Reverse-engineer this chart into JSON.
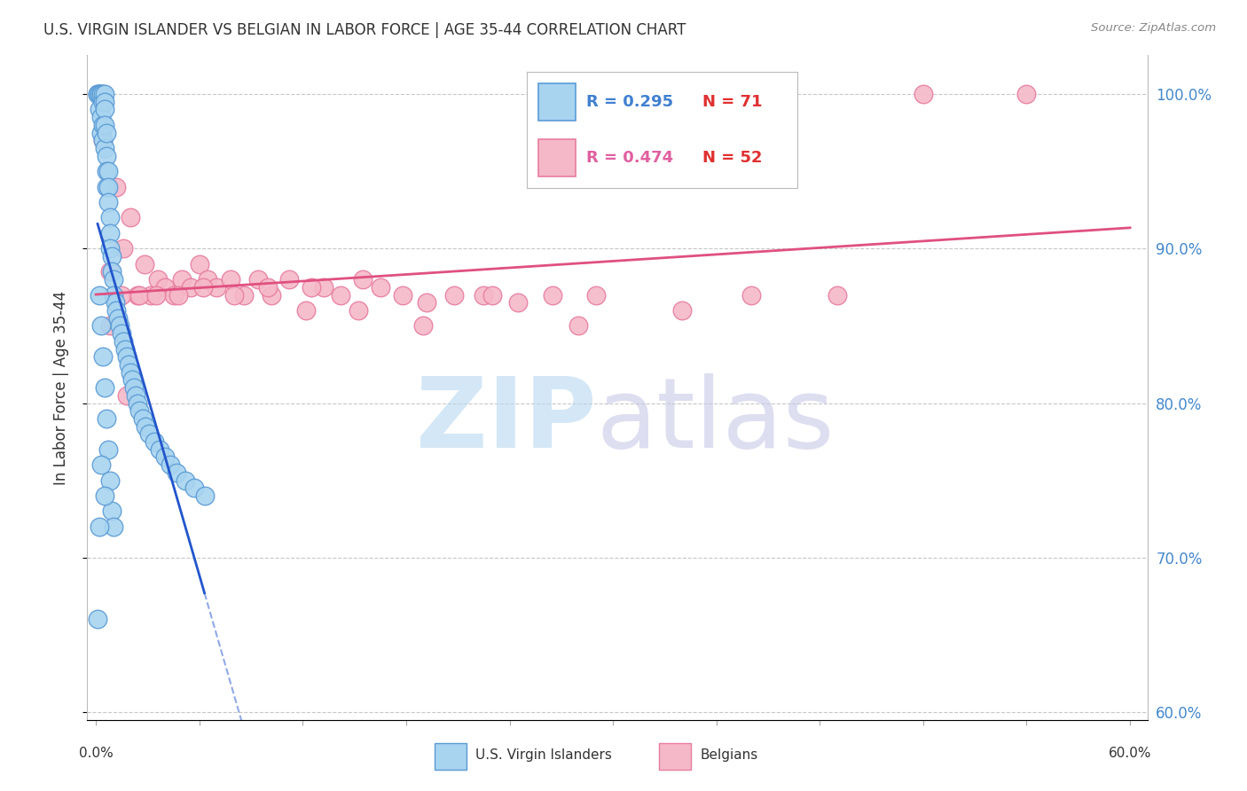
{
  "title": "U.S. VIRGIN ISLANDER VS BELGIAN IN LABOR FORCE | AGE 35-44 CORRELATION CHART",
  "source": "Source: ZipAtlas.com",
  "ylabel": "In Labor Force | Age 35-44",
  "xlim": [
    -0.005,
    0.61
  ],
  "ylim": [
    0.595,
    1.025
  ],
  "yticks": [
    0.6,
    0.7,
    0.8,
    0.9,
    1.0
  ],
  "yticklabels": [
    "60.0%",
    "70.0%",
    "80.0%",
    "90.0%",
    "100.0%"
  ],
  "xtick_positions": [
    0.0,
    0.06,
    0.12,
    0.18,
    0.24,
    0.3,
    0.36,
    0.42,
    0.48,
    0.54,
    0.6
  ],
  "blue_color": "#a8d4f0",
  "pink_color": "#f5b8c8",
  "blue_edge_color": "#5b9bd5",
  "pink_edge_color": "#e87da0",
  "blue_line_color": "#2255cc",
  "pink_line_color": "#e05080",
  "legend_r_blue": "R = 0.295",
  "legend_n_blue": "N = 71",
  "legend_r_pink": "R = 0.474",
  "legend_n_pink": "N = 52",
  "legend_r_blue_color": "#4080d0",
  "legend_n_blue_color": "#e03030",
  "legend_r_pink_color": "#e060a0",
  "legend_n_pink_color": "#e03030",
  "blue_x": [
    0.001,
    0.001,
    0.002,
    0.002,
    0.002,
    0.003,
    0.003,
    0.003,
    0.003,
    0.004,
    0.004,
    0.004,
    0.004,
    0.005,
    0.005,
    0.005,
    0.005,
    0.005,
    0.006,
    0.006,
    0.006,
    0.006,
    0.007,
    0.007,
    0.007,
    0.008,
    0.008,
    0.008,
    0.009,
    0.009,
    0.01,
    0.01,
    0.011,
    0.012,
    0.013,
    0.014,
    0.015,
    0.016,
    0.017,
    0.018,
    0.019,
    0.02,
    0.021,
    0.022,
    0.023,
    0.024,
    0.025,
    0.027,
    0.029,
    0.031,
    0.034,
    0.037,
    0.04,
    0.043,
    0.047,
    0.052,
    0.057,
    0.063,
    0.002,
    0.003,
    0.004,
    0.005,
    0.006,
    0.007,
    0.008,
    0.009,
    0.01,
    0.003,
    0.005,
    0.002,
    0.001
  ],
  "blue_y": [
    1.0,
    1.0,
    1.0,
    1.0,
    0.99,
    1.0,
    1.0,
    0.985,
    0.975,
    1.0,
    0.995,
    0.98,
    0.97,
    1.0,
    0.995,
    0.99,
    0.98,
    0.965,
    0.975,
    0.96,
    0.95,
    0.94,
    0.95,
    0.94,
    0.93,
    0.92,
    0.91,
    0.9,
    0.895,
    0.885,
    0.88,
    0.87,
    0.865,
    0.86,
    0.855,
    0.85,
    0.845,
    0.84,
    0.835,
    0.83,
    0.825,
    0.82,
    0.815,
    0.81,
    0.805,
    0.8,
    0.795,
    0.79,
    0.785,
    0.78,
    0.775,
    0.77,
    0.765,
    0.76,
    0.755,
    0.75,
    0.745,
    0.74,
    0.87,
    0.85,
    0.83,
    0.81,
    0.79,
    0.77,
    0.75,
    0.73,
    0.72,
    0.76,
    0.74,
    0.72,
    0.66
  ],
  "pink_x": [
    0.004,
    0.008,
    0.012,
    0.016,
    0.02,
    0.024,
    0.028,
    0.032,
    0.036,
    0.04,
    0.045,
    0.05,
    0.055,
    0.06,
    0.065,
    0.07,
    0.078,
    0.086,
    0.094,
    0.102,
    0.112,
    0.122,
    0.132,
    0.142,
    0.152,
    0.165,
    0.178,
    0.192,
    0.208,
    0.225,
    0.245,
    0.265,
    0.29,
    0.015,
    0.025,
    0.035,
    0.048,
    0.062,
    0.08,
    0.1,
    0.125,
    0.155,
    0.19,
    0.23,
    0.28,
    0.34,
    0.38,
    0.43,
    0.48,
    0.54,
    0.008,
    0.018
  ],
  "pink_y": [
    0.97,
    0.885,
    0.94,
    0.9,
    0.92,
    0.87,
    0.89,
    0.87,
    0.88,
    0.875,
    0.87,
    0.88,
    0.875,
    0.89,
    0.88,
    0.875,
    0.88,
    0.87,
    0.88,
    0.87,
    0.88,
    0.86,
    0.875,
    0.87,
    0.86,
    0.875,
    0.87,
    0.865,
    0.87,
    0.87,
    0.865,
    0.87,
    0.87,
    0.87,
    0.87,
    0.87,
    0.87,
    0.875,
    0.87,
    0.875,
    0.875,
    0.88,
    0.85,
    0.87,
    0.85,
    0.86,
    0.87,
    0.87,
    1.0,
    1.0,
    0.85,
    0.805
  ],
  "blue_line_x": [
    0.0,
    0.06
  ],
  "blue_line_y_intercept": 0.828,
  "blue_line_slope": 6.0,
  "pink_line_x": [
    0.0,
    0.6
  ],
  "pink_line_y_intercept": 0.855,
  "pink_line_slope": 0.245
}
